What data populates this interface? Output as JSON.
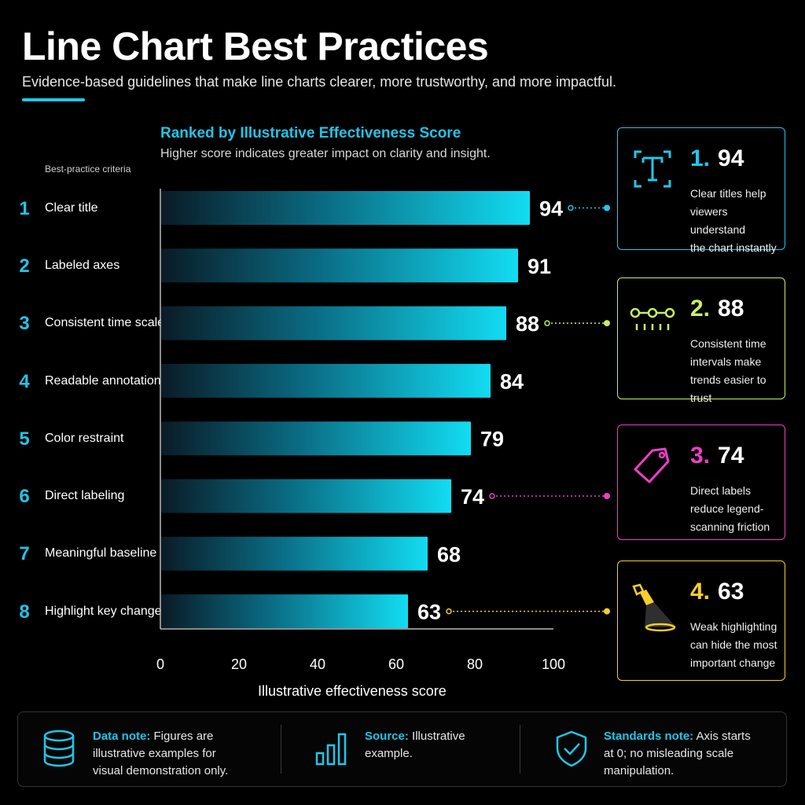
{
  "header": {
    "title": "Line Chart Best Practices",
    "subtitle": "Evidence-based guidelines that make line charts clearer, more trustworthy, and more impactful."
  },
  "chart_data": {
    "type": "bar",
    "orientation": "horizontal",
    "title": "Ranked by Illustrative Effectiveness Score",
    "subtitle": "Higher score indicates greater impact on clarity and insight.",
    "category_header": "Best-practice criteria",
    "xlabel": "Illustrative effectiveness score",
    "ylabel": "",
    "xlim": [
      0,
      100
    ],
    "xticks": [
      0,
      20,
      40,
      60,
      80,
      100
    ],
    "ranks": [
      "1",
      "2",
      "3",
      "4",
      "5",
      "6",
      "7",
      "8"
    ],
    "categories": [
      "Clear title",
      "Labeled axes",
      "Consistent time scale",
      "Readable annotations",
      "Color restraint",
      "Direct labeling",
      "Meaningful baseline",
      "Highlight key change"
    ],
    "values": [
      94,
      91,
      88,
      84,
      79,
      74,
      68,
      63
    ],
    "bar_color": "#11d4ec",
    "grid": false,
    "legend": "none"
  },
  "callouts": [
    {
      "rank": "1.",
      "value": "94",
      "lines": [
        "Clear titles help",
        "viewers understand",
        "the chart instantly"
      ],
      "color": "#1ec8ec",
      "icon": "title-icon",
      "bar_index": 0
    },
    {
      "rank": "2.",
      "value": "88",
      "lines": [
        "Consistent time",
        "intervals make",
        "trends easier to trust"
      ],
      "color": "#c9ee62",
      "icon": "timeline-icon",
      "bar_index": 2
    },
    {
      "rank": "3.",
      "value": "74",
      "lines": [
        "Direct labels",
        "reduce legend-",
        "scanning friction"
      ],
      "color": "#ee3ec8",
      "icon": "tag-icon",
      "bar_index": 5
    },
    {
      "rank": "4.",
      "value": "63",
      "lines": [
        "Weak highlighting",
        "can hide the most",
        "important change"
      ],
      "color": "#f5cf2b",
      "icon": "spotlight-icon",
      "bar_index": 7
    }
  ],
  "footer": {
    "items": [
      {
        "label": "Data note:",
        "text": "Figures are illustrative examples for visual demonstration only.",
        "lines": [
          "Figures are",
          "illustrative examples for",
          "visual demonstration only."
        ],
        "icon": "database-icon"
      },
      {
        "label": "Source:",
        "text": "Illustrative example.",
        "lines": [
          "Illustrative",
          "example."
        ],
        "icon": "bar-chart-icon"
      },
      {
        "label": "Standards note:",
        "text": "Axis starts at 0; no misleading scale manipulation.",
        "lines": [
          "Axis starts",
          "at 0; no misleading scale",
          "manipulation."
        ],
        "icon": "shield-check-icon"
      }
    ]
  }
}
